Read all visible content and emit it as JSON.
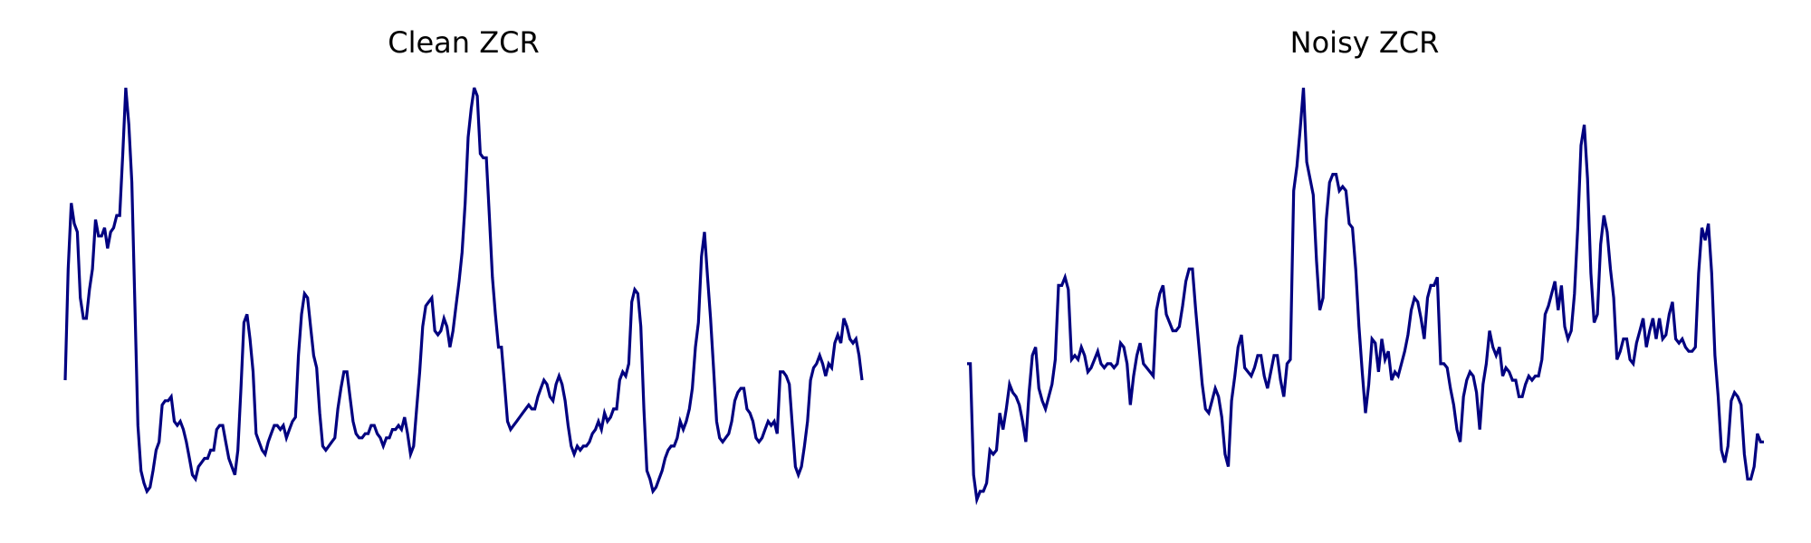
{
  "chart_data": [
    {
      "type": "line",
      "title": "Clean ZCR",
      "xlabel": "",
      "ylabel": "",
      "axes_visible": false,
      "grid": false,
      "x_range": [
        0,
        197
      ],
      "ylim": [
        0,
        1
      ],
      "series": [
        {
          "color": "#000080",
          "values": [
            0.29,
            0.56,
            0.72,
            0.67,
            0.65,
            0.49,
            0.44,
            0.44,
            0.51,
            0.56,
            0.68,
            0.64,
            0.64,
            0.66,
            0.61,
            0.65,
            0.66,
            0.69,
            0.69,
            0.84,
            1.0,
            0.91,
            0.77,
            0.47,
            0.18,
            0.07,
            0.04,
            0.02,
            0.03,
            0.07,
            0.12,
            0.14,
            0.23,
            0.24,
            0.24,
            0.25,
            0.19,
            0.18,
            0.19,
            0.17,
            0.14,
            0.1,
            0.06,
            0.05,
            0.08,
            0.09,
            0.1,
            0.1,
            0.12,
            0.12,
            0.17,
            0.18,
            0.18,
            0.14,
            0.1,
            0.08,
            0.06,
            0.12,
            0.27,
            0.43,
            0.45,
            0.39,
            0.31,
            0.16,
            0.14,
            0.12,
            0.11,
            0.14,
            0.16,
            0.18,
            0.18,
            0.17,
            0.18,
            0.15,
            0.17,
            0.19,
            0.2,
            0.35,
            0.45,
            0.5,
            0.49,
            0.42,
            0.35,
            0.32,
            0.21,
            0.13,
            0.12,
            0.13,
            0.14,
            0.15,
            0.22,
            0.27,
            0.31,
            0.31,
            0.25,
            0.19,
            0.16,
            0.15,
            0.15,
            0.16,
            0.16,
            0.18,
            0.18,
            0.16,
            0.15,
            0.13,
            0.15,
            0.15,
            0.17,
            0.17,
            0.18,
            0.17,
            0.2,
            0.16,
            0.11,
            0.13,
            0.22,
            0.31,
            0.42,
            0.47,
            0.48,
            0.49,
            0.41,
            0.4,
            0.41,
            0.44,
            0.42,
            0.37,
            0.41,
            0.47,
            0.53,
            0.6,
            0.72,
            0.88,
            0.95,
            1.0,
            0.98,
            0.84,
            0.83,
            0.83,
            0.69,
            0.54,
            0.45,
            0.37,
            0.37,
            0.28,
            0.19,
            0.17,
            0.18,
            0.19,
            0.2,
            0.21,
            0.22,
            0.23,
            0.22,
            0.22,
            0.25,
            0.27,
            0.29,
            0.28,
            0.25,
            0.24,
            0.28,
            0.3,
            0.28,
            0.24,
            0.18,
            0.13,
            0.11,
            0.13,
            0.12,
            0.13,
            0.13,
            0.14,
            0.16,
            0.17,
            0.19,
            0.17,
            0.21,
            0.19,
            0.2,
            0.22,
            0.22,
            0.29,
            0.31,
            0.3,
            0.33,
            0.48,
            0.51,
            0.5,
            0.42,
            0.22,
            0.07,
            0.05,
            0.02,
            0.03,
            0.05,
            0.07,
            0.1,
            0.12,
            0.13,
            0.13,
            0.15,
            0.19,
            0.17,
            0.19,
            0.22,
            0.27,
            0.37,
            0.43,
            0.59,
            0.65,
            0.54,
            0.44,
            0.32,
            0.19,
            0.15,
            0.14,
            0.15,
            0.16,
            0.19,
            0.24,
            0.26,
            0.27,
            0.27,
            0.22,
            0.21,
            0.19,
            0.15,
            0.14,
            0.15,
            0.17,
            0.19,
            0.18,
            0.19,
            0.16,
            0.31,
            0.31,
            0.3,
            0.28,
            0.18,
            0.08,
            0.06,
            0.08,
            0.13,
            0.19,
            0.29,
            0.32,
            0.33,
            0.35,
            0.33,
            0.3,
            0.33,
            0.32,
            0.38,
            0.4,
            0.38,
            0.44,
            0.42,
            0.39,
            0.38,
            0.39,
            0.35,
            0.29
          ]
        }
      ]
    },
    {
      "type": "line",
      "title": "Noisy ZCR",
      "xlabel": "",
      "ylabel": "",
      "axes_visible": false,
      "grid": false,
      "x_range": [
        0,
        197
      ],
      "ylim": [
        0,
        1
      ],
      "series": [
        {
          "color": "#000080",
          "values": [
            0.33,
            0.33,
            0.06,
            0.0,
            0.02,
            0.02,
            0.04,
            0.12,
            0.11,
            0.12,
            0.21,
            0.17,
            0.22,
            0.28,
            0.26,
            0.25,
            0.23,
            0.19,
            0.14,
            0.26,
            0.35,
            0.37,
            0.27,
            0.24,
            0.22,
            0.25,
            0.28,
            0.34,
            0.52,
            0.52,
            0.54,
            0.51,
            0.34,
            0.35,
            0.34,
            0.37,
            0.35,
            0.31,
            0.32,
            0.34,
            0.36,
            0.33,
            0.32,
            0.33,
            0.33,
            0.32,
            0.33,
            0.38,
            0.37,
            0.33,
            0.23,
            0.3,
            0.35,
            0.38,
            0.33,
            0.32,
            0.31,
            0.3,
            0.46,
            0.5,
            0.52,
            0.45,
            0.43,
            0.41,
            0.41,
            0.42,
            0.47,
            0.53,
            0.56,
            0.56,
            0.46,
            0.37,
            0.28,
            0.22,
            0.21,
            0.24,
            0.27,
            0.25,
            0.2,
            0.11,
            0.08,
            0.24,
            0.3,
            0.37,
            0.4,
            0.32,
            0.31,
            0.3,
            0.32,
            0.35,
            0.35,
            0.3,
            0.27,
            0.31,
            0.35,
            0.35,
            0.29,
            0.25,
            0.33,
            0.34,
            0.75,
            0.81,
            0.9,
            1.0,
            0.82,
            0.78,
            0.74,
            0.58,
            0.46,
            0.49,
            0.68,
            0.77,
            0.79,
            0.79,
            0.75,
            0.76,
            0.75,
            0.67,
            0.66,
            0.56,
            0.42,
            0.31,
            0.21,
            0.28,
            0.39,
            0.38,
            0.31,
            0.39,
            0.34,
            0.36,
            0.29,
            0.31,
            0.3,
            0.33,
            0.36,
            0.4,
            0.46,
            0.49,
            0.48,
            0.44,
            0.39,
            0.49,
            0.52,
            0.52,
            0.54,
            0.33,
            0.33,
            0.32,
            0.27,
            0.23,
            0.17,
            0.14,
            0.25,
            0.29,
            0.31,
            0.3,
            0.26,
            0.17,
            0.28,
            0.33,
            0.41,
            0.37,
            0.35,
            0.37,
            0.3,
            0.32,
            0.31,
            0.29,
            0.29,
            0.25,
            0.25,
            0.28,
            0.3,
            0.29,
            0.3,
            0.3,
            0.34,
            0.45,
            0.47,
            0.5,
            0.53,
            0.46,
            0.52,
            0.42,
            0.39,
            0.41,
            0.5,
            0.66,
            0.86,
            0.91,
            0.78,
            0.55,
            0.43,
            0.45,
            0.62,
            0.69,
            0.65,
            0.56,
            0.49,
            0.34,
            0.36,
            0.39,
            0.39,
            0.34,
            0.33,
            0.38,
            0.41,
            0.44,
            0.37,
            0.41,
            0.44,
            0.39,
            0.44,
            0.39,
            0.4,
            0.45,
            0.48,
            0.39,
            0.38,
            0.39,
            0.37,
            0.36,
            0.36,
            0.37,
            0.55,
            0.66,
            0.63,
            0.67,
            0.55,
            0.35,
            0.25,
            0.12,
            0.09,
            0.13,
            0.24,
            0.26,
            0.25,
            0.23,
            0.11,
            0.05,
            0.05,
            0.08,
            0.16,
            0.14,
            0.14
          ]
        }
      ]
    }
  ]
}
